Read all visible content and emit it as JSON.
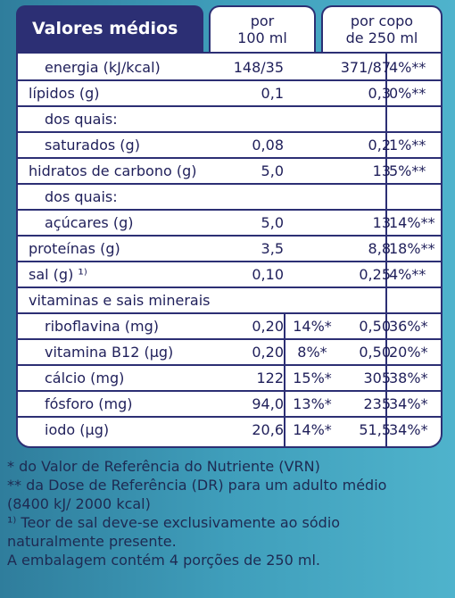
{
  "header": {
    "title": "Valores médios",
    "col_100ml": [
      "por",
      "100 ml"
    ],
    "col_copo": [
      "por copo",
      "de 250 ml"
    ]
  },
  "rows": [
    {
      "label": "energia (kJ/kcal)",
      "v100": "148/35",
      "pct100": "",
      "vcopo": "371/87",
      "pcopo": "4%**",
      "indent": true
    },
    {
      "label": "lípidos (g)",
      "v100": "0,1",
      "pct100": "",
      "vcopo": "0,3",
      "pcopo": "0%**",
      "indent": false
    },
    {
      "label": "dos quais:",
      "v100": "",
      "pct100": "",
      "vcopo": "",
      "pcopo": "",
      "indent": true
    },
    {
      "label": "saturados (g)",
      "v100": "0,08",
      "pct100": "",
      "vcopo": "0,2",
      "pcopo": "1%**",
      "indent": true
    },
    {
      "label": "hidratos de carbono (g)",
      "v100": "5,0",
      "pct100": "",
      "vcopo": "13",
      "pcopo": "5%**",
      "indent": false
    },
    {
      "label": "dos quais:",
      "v100": "",
      "pct100": "",
      "vcopo": "",
      "pcopo": "",
      "indent": true
    },
    {
      "label": "açúcares (g)",
      "v100": "5,0",
      "pct100": "",
      "vcopo": "13",
      "pcopo": "14%**",
      "indent": true
    },
    {
      "label": "proteínas (g)",
      "v100": "3,5",
      "pct100": "",
      "vcopo": "8,8",
      "pcopo": "18%**",
      "indent": false
    },
    {
      "label": "sal (g) ¹⁾",
      "v100": "0,10",
      "pct100": "",
      "vcopo": "0,25",
      "pcopo": "4%**",
      "indent": false
    },
    {
      "label": "vitaminas e sais minerais",
      "v100": "",
      "pct100": "",
      "vcopo": "",
      "pcopo": "",
      "indent": false
    },
    {
      "label": "riboflavina (mg)",
      "v100": "0,20",
      "pct100": "14%*",
      "vcopo": "0,50",
      "pcopo": "36%*",
      "indent": true
    },
    {
      "label": "vitamina B12 (µg)",
      "v100": "0,20",
      "pct100": "8%*",
      "vcopo": "0,50",
      "pcopo": "20%*",
      "indent": true
    },
    {
      "label": "cálcio (mg)",
      "v100": "122",
      "pct100": "15%*",
      "vcopo": "305",
      "pcopo": "38%*",
      "indent": true
    },
    {
      "label": "fósforo (mg)",
      "v100": "94,0",
      "pct100": "13%*",
      "vcopo": "235",
      "pcopo": "34%*",
      "indent": true
    },
    {
      "label": "iodo (µg)",
      "v100": "20,6",
      "pct100": "14%*",
      "vcopo": "51,5",
      "pcopo": "34%*",
      "indent": true
    }
  ],
  "footer": [
    "* do Valor de Referência do Nutriente (VRN)",
    "** da Dose de Referência (DR) para um adulto médio",
    "(8400 kJ/ 2000 kcal)",
    "¹⁾ Teor de sal deve-se exclusivamente ao sódio",
    "naturalmente presente.",
    "A embalagem contém 4 porções de 250 ml."
  ]
}
